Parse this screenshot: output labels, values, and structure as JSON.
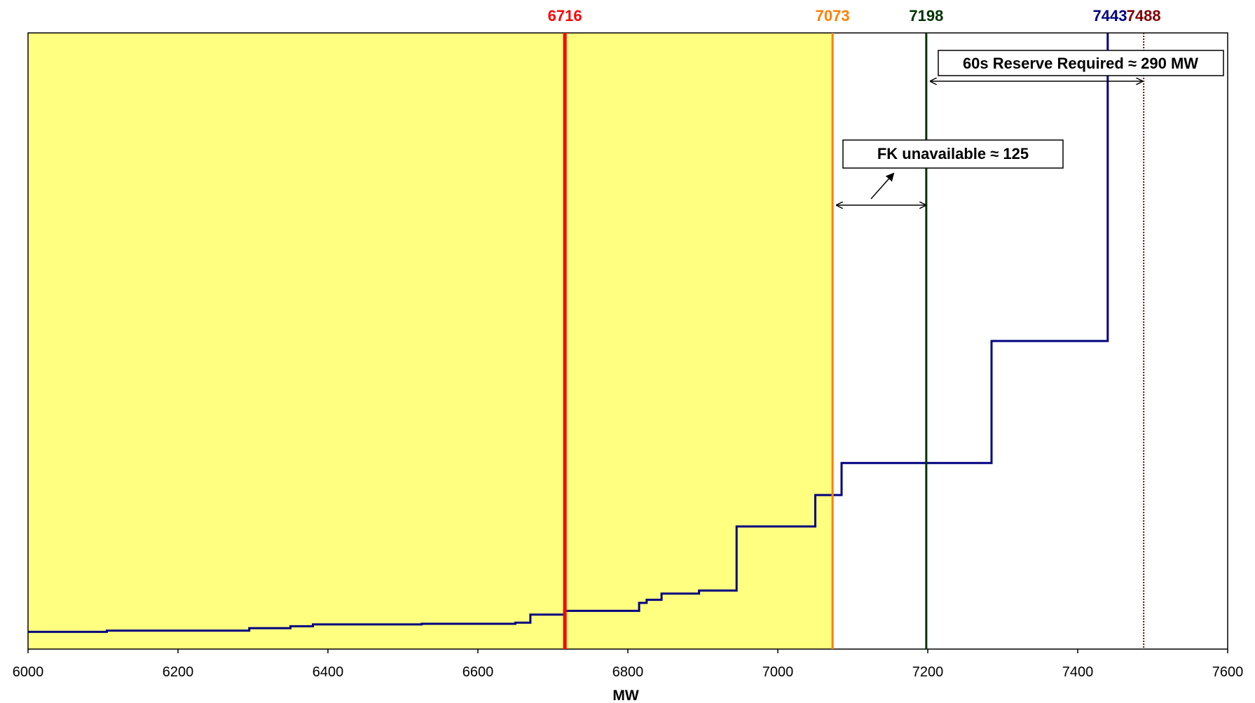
{
  "chart_data": {
    "type": "line",
    "xlabel": "MW",
    "xlim": [
      6000,
      7600
    ],
    "ylim": [
      0,
      1
    ],
    "x_ticks": [
      "6000",
      "6200",
      "6400",
      "6600",
      "6800",
      "7000",
      "7200",
      "7400",
      "7600"
    ],
    "grid": false,
    "legend": "none",
    "shaded_region": {
      "from": 6000,
      "to": 7073,
      "color": "#ffff80"
    },
    "series": [
      {
        "color": "#000080",
        "step_points": [
          [
            6000,
            0.028
          ],
          [
            6105,
            0.028
          ],
          [
            6105,
            0.03
          ],
          [
            6295,
            0.03
          ],
          [
            6295,
            0.034
          ],
          [
            6350,
            0.034
          ],
          [
            6350,
            0.037
          ],
          [
            6380,
            0.037
          ],
          [
            6380,
            0.04
          ],
          [
            6525,
            0.04
          ],
          [
            6525,
            0.041
          ],
          [
            6650,
            0.041
          ],
          [
            6650,
            0.043
          ],
          [
            6670,
            0.043
          ],
          [
            6670,
            0.056
          ],
          [
            6715,
            0.056
          ],
          [
            6715,
            0.062
          ],
          [
            6815,
            0.062
          ],
          [
            6815,
            0.075
          ],
          [
            6825,
            0.075
          ],
          [
            6825,
            0.08
          ],
          [
            6845,
            0.08
          ],
          [
            6845,
            0.09
          ],
          [
            6895,
            0.09
          ],
          [
            6895,
            0.095
          ],
          [
            6945,
            0.095
          ],
          [
            6945,
            0.199
          ],
          [
            7050,
            0.199
          ],
          [
            7050,
            0.25
          ],
          [
            7085,
            0.25
          ],
          [
            7085,
            0.302
          ],
          [
            7285,
            0.302
          ],
          [
            7285,
            0.5
          ],
          [
            7440,
            0.5
          ],
          [
            7440,
            1.0
          ]
        ]
      }
    ],
    "markers": [
      {
        "value": 6716,
        "label": "6716",
        "color": "#ff0000",
        "line": true,
        "style": "thick"
      },
      {
        "value": 7073,
        "label": "7073",
        "color": "#ff8000",
        "line": true,
        "style": "solid"
      },
      {
        "value": 7198,
        "label": "7198",
        "color": "#003300",
        "line": true,
        "style": "solid"
      },
      {
        "value": 7443,
        "label": "7443",
        "color": "#000080",
        "line": false,
        "style": "none"
      },
      {
        "value": 7488,
        "label": "7488",
        "color": "#800000",
        "line": true,
        "style": "dotted"
      }
    ],
    "annotations": [
      {
        "text": "60s Reserve Required ≈ 290 MW",
        "from": 7198,
        "to": 7488
      },
      {
        "text": "FK unavailable ≈ 125",
        "from": 7073,
        "to": 7198
      }
    ]
  }
}
